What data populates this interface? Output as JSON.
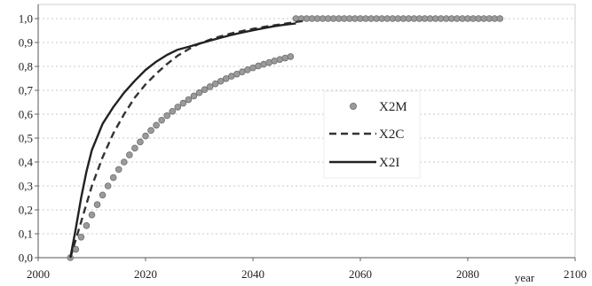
{
  "chart_data": {
    "type": "line",
    "title": "",
    "xlabel": "year",
    "ylabel": "",
    "xlim": [
      2000,
      2100
    ],
    "ylim": [
      0,
      1.0
    ],
    "xticks": [
      "2000",
      "2020",
      "2040",
      "2060",
      "2080",
      "2100"
    ],
    "yticks": [
      "0,0",
      "0,1",
      "0,2",
      "0,3",
      "0,4",
      "0,5",
      "0,6",
      "0,7",
      "0,8",
      "0,9",
      "1,0"
    ],
    "grid": "horizontal dotted",
    "legend_position": "center-right",
    "series": [
      {
        "name": "X2M",
        "style": "markers",
        "color": "#9a9a9a",
        "x": [
          2006,
          2007,
          2008,
          2009,
          2010,
          2011,
          2012,
          2013,
          2014,
          2015,
          2016,
          2017,
          2018,
          2019,
          2020,
          2021,
          2022,
          2023,
          2024,
          2025,
          2026,
          2027,
          2028,
          2029,
          2030,
          2031,
          2032,
          2033,
          2034,
          2035,
          2036,
          2037,
          2038,
          2039,
          2040,
          2041,
          2042,
          2043,
          2044,
          2045,
          2046,
          2047,
          2048,
          2049,
          2050,
          2051,
          2052,
          2053,
          2054,
          2055,
          2056,
          2057,
          2058,
          2059,
          2060,
          2061,
          2062,
          2063,
          2064,
          2065,
          2066,
          2067,
          2068,
          2069,
          2070,
          2071,
          2072,
          2073,
          2074,
          2075,
          2076,
          2077,
          2078,
          2079,
          2080,
          2081,
          2082,
          2083,
          2084,
          2085,
          2086
        ],
        "y": [
          0.0,
          0.035,
          0.086,
          0.134,
          0.179,
          0.222,
          0.262,
          0.3,
          0.335,
          0.369,
          0.4,
          0.43,
          0.458,
          0.484,
          0.509,
          0.532,
          0.554,
          0.575,
          0.594,
          0.612,
          0.63,
          0.646,
          0.661,
          0.676,
          0.69,
          0.703,
          0.715,
          0.727,
          0.738,
          0.749,
          0.759,
          0.768,
          0.777,
          0.786,
          0.794,
          0.802,
          0.809,
          0.816,
          0.823,
          0.829,
          0.835,
          0.841,
          1.0,
          1.0,
          1.0,
          1.0,
          1.0,
          1.0,
          1.0,
          1.0,
          1.0,
          1.0,
          1.0,
          1.0,
          1.0,
          1.0,
          1.0,
          1.0,
          1.0,
          1.0,
          1.0,
          1.0,
          1.0,
          1.0,
          1.0,
          1.0,
          1.0,
          1.0,
          1.0,
          1.0,
          1.0,
          1.0,
          1.0,
          1.0,
          1.0,
          1.0,
          1.0,
          1.0,
          1.0,
          1.0,
          1.0
        ]
      },
      {
        "name": "X2C",
        "style": "dashed",
        "color": "#333333",
        "x": [
          2006,
          2008,
          2010,
          2012,
          2014,
          2016,
          2018,
          2020,
          2022,
          2024,
          2026,
          2028,
          2030,
          2032,
          2034,
          2036,
          2038,
          2040,
          2042,
          2044,
          2046,
          2048,
          2050
        ],
        "y": [
          0.0,
          0.15,
          0.3,
          0.42,
          0.52,
          0.6,
          0.67,
          0.725,
          0.77,
          0.81,
          0.845,
          0.872,
          0.895,
          0.912,
          0.926,
          0.938,
          0.948,
          0.957,
          0.965,
          0.972,
          0.979,
          0.986,
          0.992
        ]
      },
      {
        "name": "X2I",
        "style": "solid",
        "color": "#222222",
        "x": [
          2006,
          2007,
          2008,
          2009,
          2010,
          2012,
          2014,
          2016,
          2018,
          2020,
          2022,
          2024,
          2026,
          2028,
          2030,
          2032,
          2034,
          2036,
          2038,
          2040,
          2042,
          2044,
          2046,
          2048
        ],
        "y": [
          0.0,
          0.12,
          0.25,
          0.36,
          0.45,
          0.56,
          0.63,
          0.69,
          0.74,
          0.785,
          0.82,
          0.848,
          0.87,
          0.882,
          0.895,
          0.908,
          0.92,
          0.932,
          0.942,
          0.951,
          0.96,
          0.968,
          0.975,
          0.98
        ]
      }
    ]
  }
}
